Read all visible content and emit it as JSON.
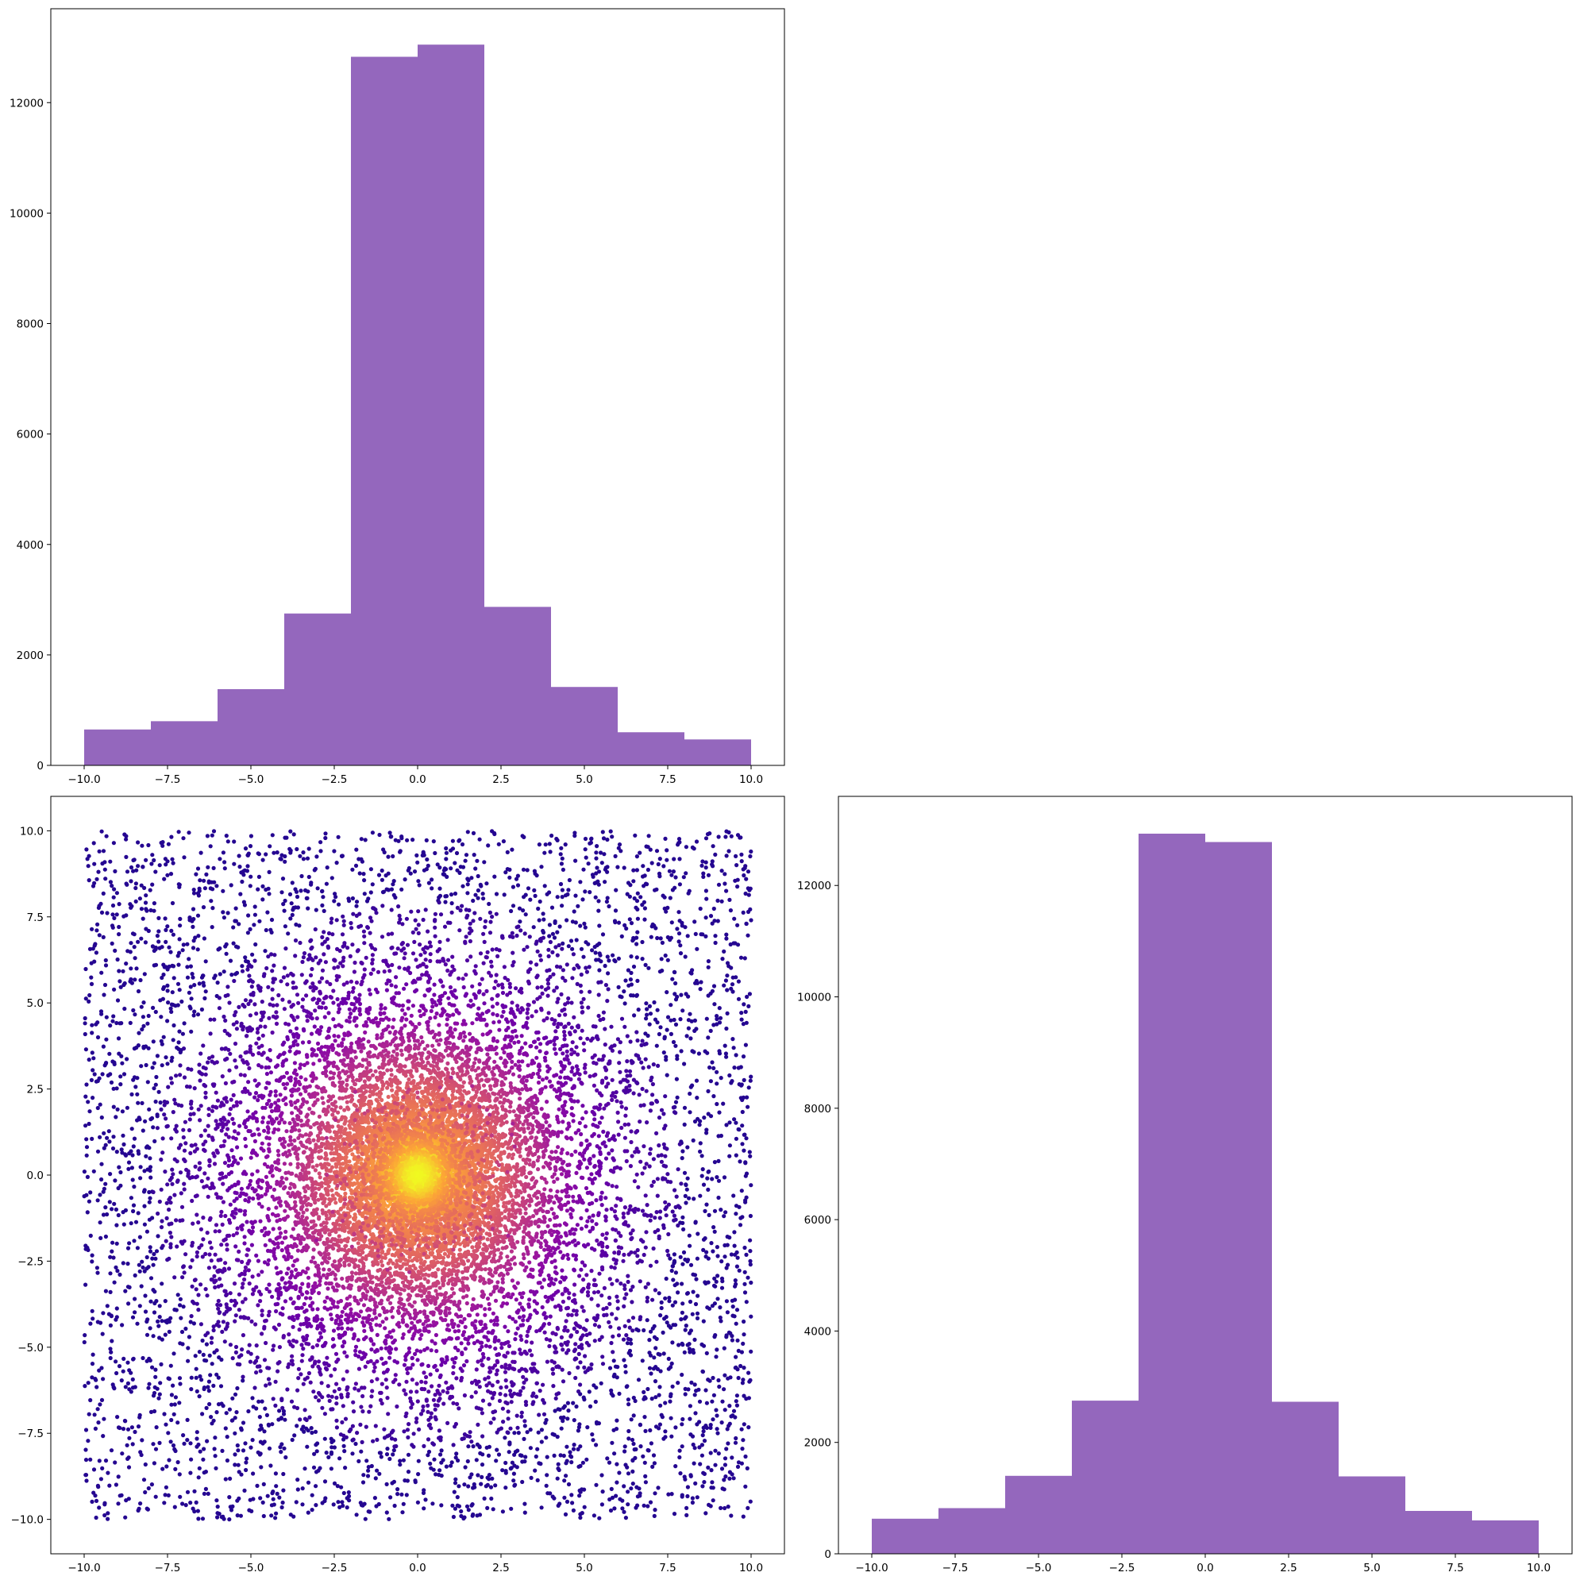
{
  "chart_data": [
    {
      "panel": "top-left",
      "type": "bar",
      "bin_edges": [
        -10,
        -8,
        -6,
        -4,
        -2,
        0,
        2,
        4,
        6,
        8,
        10
      ],
      "values": [
        650,
        800,
        1380,
        2750,
        12830,
        13050,
        2870,
        1420,
        600,
        470
      ],
      "xlim": [
        -11,
        11
      ],
      "ylim": [
        0,
        13700
      ],
      "xticks": [
        -10.0,
        -7.5,
        -5.0,
        -2.5,
        0.0,
        2.5,
        5.0,
        7.5,
        10.0
      ],
      "xtick_labels": [
        "−10.0",
        "−7.5",
        "−5.0",
        "−2.5",
        "0.0",
        "2.5",
        "5.0",
        "7.5",
        "10.0"
      ],
      "yticks": [
        0,
        2000,
        4000,
        6000,
        8000,
        10000,
        12000
      ],
      "ytick_labels": [
        "0",
        "2000",
        "4000",
        "6000",
        "8000",
        "10000",
        "12000"
      ],
      "color": "#9467bd",
      "grid": false
    },
    {
      "panel": "bottom-left",
      "type": "scatter",
      "description_of_distribution": "mixture of a uniform square on [-10,10]x[-10,10] and a dense isotropic cluster centered at (0,0); points colored by density (plasma colormap), brightest at center",
      "colormap": "plasma",
      "center": [
        0,
        0
      ],
      "xlim": [
        -11,
        11
      ],
      "ylim": [
        -11,
        11
      ],
      "xticks": [
        -10.0,
        -7.5,
        -5.0,
        -2.5,
        0.0,
        2.5,
        5.0,
        7.5,
        10.0
      ],
      "xtick_labels": [
        "−10.0",
        "−7.5",
        "−5.0",
        "−2.5",
        "0.0",
        "2.5",
        "5.0",
        "7.5",
        "10.0"
      ],
      "yticks": [
        -10.0,
        -7.5,
        -5.0,
        -2.5,
        0.0,
        2.5,
        5.0,
        7.5,
        10.0
      ],
      "ytick_labels": [
        "−10.0",
        "−7.5",
        "−5.0",
        "−2.5",
        "0.0",
        "2.5",
        "5.0",
        "7.5",
        "10.0"
      ],
      "colors": {
        "low": "#2a0594",
        "mid": "#8a09a5",
        "high": "#f0f921"
      },
      "grid": false
    },
    {
      "panel": "bottom-right",
      "type": "bar",
      "bin_edges": [
        -10,
        -8,
        -6,
        -4,
        -2,
        0,
        2,
        4,
        6,
        8,
        10
      ],
      "values": [
        630,
        820,
        1400,
        2750,
        12930,
        12780,
        2730,
        1390,
        770,
        600
      ],
      "xlim": [
        -11,
        11
      ],
      "ylim": [
        0,
        13600
      ],
      "xticks": [
        -10.0,
        -7.5,
        -5.0,
        -2.5,
        0.0,
        2.5,
        5.0,
        7.5,
        10.0
      ],
      "xtick_labels": [
        "−10.0",
        "−7.5",
        "−5.0",
        "−2.5",
        "0.0",
        "2.5",
        "5.0",
        "7.5",
        "10.0"
      ],
      "yticks": [
        0,
        2000,
        4000,
        6000,
        8000,
        10000,
        12000
      ],
      "ytick_labels": [
        "0",
        "2000",
        "4000",
        "6000",
        "8000",
        "10000",
        "12000"
      ],
      "color": "#9467bd",
      "grid": false
    }
  ]
}
